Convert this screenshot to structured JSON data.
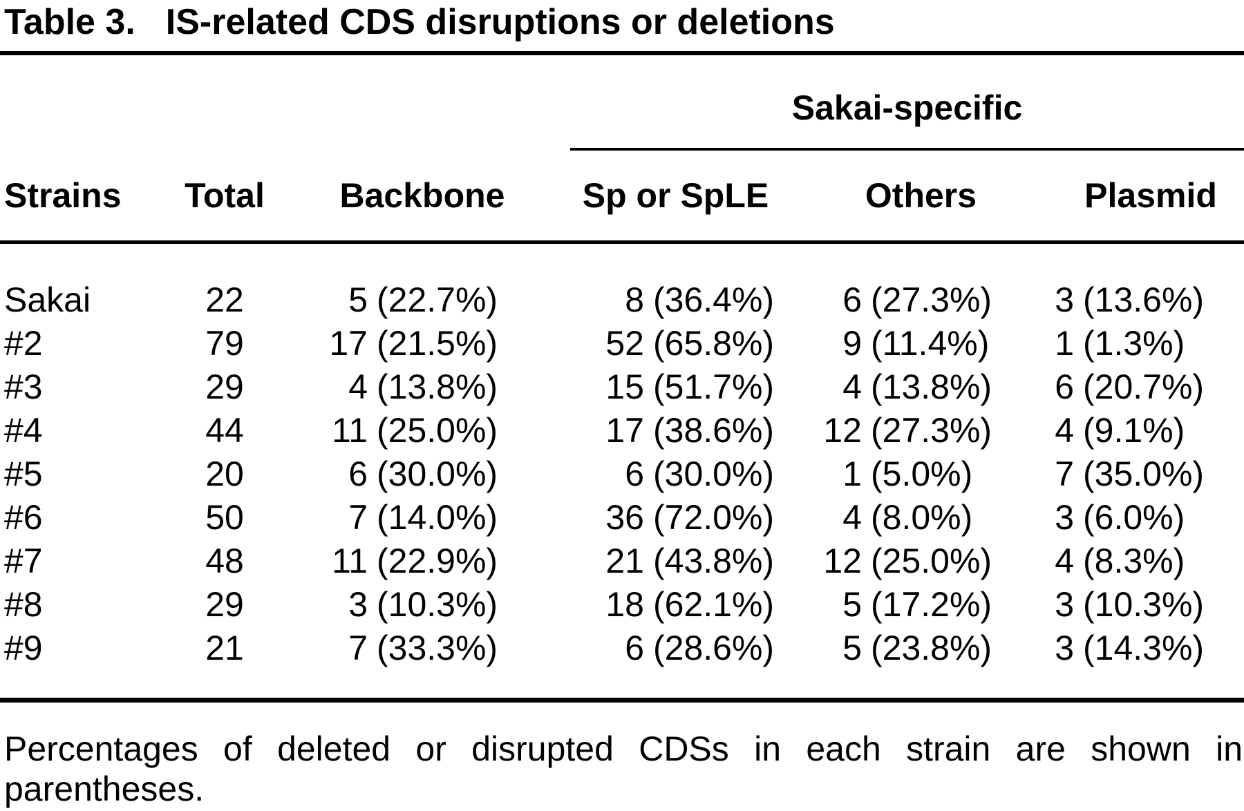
{
  "colors": {
    "text": "#000000",
    "background": "#ffffff",
    "rules": "#000000"
  },
  "title": {
    "label": "Table 3.",
    "text": "IS-related CDS disruptions or deletions"
  },
  "table": {
    "spanner": "Sakai-specific",
    "columns": [
      "Strains",
      "Total",
      "Backbone",
      "Sp or SpLE",
      "Others",
      "Plasmid"
    ],
    "rows": [
      [
        "Sakai",
        "22",
        "5",
        "(22.7%)",
        "8",
        "(36.4%)",
        "6",
        "(27.3%)",
        "3",
        "(13.6%)"
      ],
      [
        "#2",
        "79",
        "17",
        "(21.5%)",
        "52",
        "(65.8%)",
        "9",
        "(11.4%)",
        "1",
        "(1.3%)"
      ],
      [
        "#3",
        "29",
        "4",
        "(13.8%)",
        "15",
        "(51.7%)",
        "4",
        "(13.8%)",
        "6",
        "(20.7%)"
      ],
      [
        "#4",
        "44",
        "11",
        "(25.0%)",
        "17",
        "(38.6%)",
        "12",
        "(27.3%)",
        "4",
        "(9.1%)"
      ],
      [
        "#5",
        "20",
        "6",
        "(30.0%)",
        "6",
        "(30.0%)",
        "1",
        "(5.0%)",
        "7",
        "(35.0%)"
      ],
      [
        "#6",
        "50",
        "7",
        "(14.0%)",
        "36",
        "(72.0%)",
        "4",
        "(8.0%)",
        "3",
        "(6.0%)"
      ],
      [
        "#7",
        "48",
        "11",
        "(22.9%)",
        "21",
        "(43.8%)",
        "12",
        "(25.0%)",
        "4",
        "(8.3%)"
      ],
      [
        "#8",
        "29",
        "3",
        "(10.3%)",
        "18",
        "(62.1%)",
        "5",
        "(17.2%)",
        "3",
        "(10.3%)"
      ],
      [
        "#9",
        "21",
        "7",
        "(33.3%)",
        "6",
        "(28.6%)",
        "5",
        "(23.8%)",
        "3",
        "(14.3%)"
      ]
    ]
  },
  "footnote": {
    "line1": "Percentages of deleted or disrupted CDSs in each strain are shown in",
    "line2": "parentheses."
  },
  "chart_data": {
    "type": "table",
    "title": "Table 3. IS-related CDS disruptions or deletions",
    "spanner": {
      "label": "Sakai-specific",
      "covers": [
        "Sp or SpLE",
        "Others",
        "Plasmid"
      ]
    },
    "columns": [
      "Strains",
      "Total",
      "Backbone",
      "Sp or SpLE",
      "Others",
      "Plasmid"
    ],
    "rows": [
      [
        "Sakai",
        "22",
        "5 (22.7%)",
        "8 (36.4%)",
        "6 (27.3%)",
        "3 (13.6%)"
      ],
      [
        "#2",
        "79",
        "17 (21.5%)",
        "52 (65.8%)",
        "9 (11.4%)",
        "1 (1.3%)"
      ],
      [
        "#3",
        "29",
        "4 (13.8%)",
        "15 (51.7%)",
        "4 (13.8%)",
        "6 (20.7%)"
      ],
      [
        "#4",
        "44",
        "11 (25.0%)",
        "17 (38.6%)",
        "12 (27.3%)",
        "4 (9.1%)"
      ],
      [
        "#5",
        "20",
        "6 (30.0%)",
        "6 (30.0%)",
        "1 (5.0%)",
        "7 (35.0%)"
      ],
      [
        "#6",
        "50",
        "7 (14.0%)",
        "36 (72.0%)",
        "4 (8.0%)",
        "3 (6.0%)"
      ],
      [
        "#7",
        "48",
        "11 (22.9%)",
        "21 (43.8%)",
        "12 (25.0%)",
        "4 (8.3%)"
      ],
      [
        "#8",
        "29",
        "3 (10.3%)",
        "18 (62.1%)",
        "5 (17.2%)",
        "3 (10.3%)"
      ],
      [
        "#9",
        "21",
        "7 (33.3%)",
        "6 (28.6%)",
        "5 (23.8%)",
        "3 (14.3%)"
      ]
    ],
    "footnote": "Percentages of deleted or disrupted CDSs in each strain are shown in parentheses."
  }
}
